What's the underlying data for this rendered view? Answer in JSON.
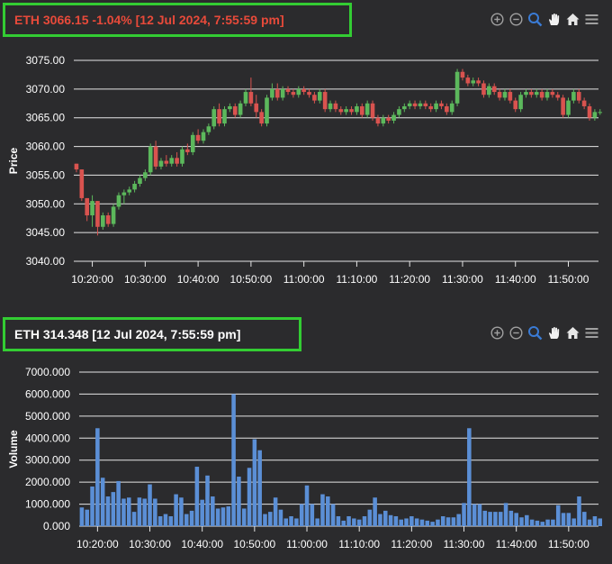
{
  "price_chart": {
    "title": "ETH 3066.15 -1.04% [12 Jul 2024, 7:55:59 pm]",
    "title_color": "#e84a3a",
    "toolbar": [
      "zoom-in-icon",
      "zoom-out-icon",
      "selection-zoom-icon",
      "pan-icon",
      "home-icon",
      "menu-icon"
    ]
  },
  "volume_chart": {
    "title": "ETH 314.348 [12 Jul 2024, 7:55:59 pm]",
    "title_color": "#ffffff",
    "toolbar": [
      "zoom-in-icon",
      "zoom-out-icon",
      "selection-zoom-icon",
      "pan-icon",
      "home-icon",
      "menu-icon"
    ]
  },
  "colors": {
    "up": "#5cb85c",
    "down": "#d9534f",
    "volume_bar": "#5b8fd6",
    "grid": "#e6e6e6",
    "axis_text": "#ffffff",
    "toolbar_icon": "#a0a0a0",
    "toolbar_active": "#3a7bd5",
    "highlight_border": "#33cc33"
  },
  "chart_data": [
    {
      "type": "candlestick",
      "ylabel": "Price",
      "xlabel": "",
      "ylim": [
        3040,
        3075
      ],
      "y_ticks": [
        "3040.00",
        "3045.00",
        "3050.00",
        "3055.00",
        "3060.00",
        "3065.00",
        "3070.00",
        "3075.00"
      ],
      "x_ticks": [
        "10:20:00",
        "10:30:00",
        "10:40:00",
        "10:50:00",
        "11:00:00",
        "11:10:00",
        "11:20:00",
        "11:30:00",
        "11:40:00",
        "11:50:00"
      ],
      "x_tick_minutes": [
        20,
        30,
        40,
        50,
        60,
        70,
        80,
        90,
        100,
        110
      ],
      "x_range_minutes": [
        16.5,
        115.7
      ],
      "ohlc": [
        [
          3057.0,
          3057.0,
          3055.5,
          3056.0
        ],
        [
          3056.0,
          3056.0,
          3050.5,
          3051.0
        ],
        [
          3051.0,
          3051.0,
          3047.0,
          3048.0
        ],
        [
          3048.0,
          3051.5,
          3046.0,
          3050.5
        ],
        [
          3050.5,
          3050.5,
          3044.5,
          3046.0
        ],
        [
          3046.0,
          3048.5,
          3045.5,
          3048.0
        ],
        [
          3048.0,
          3048.5,
          3046.0,
          3046.5
        ],
        [
          3046.5,
          3050.0,
          3046.0,
          3049.5
        ],
        [
          3049.5,
          3052.0,
          3049.0,
          3051.5
        ],
        [
          3051.5,
          3052.5,
          3050.0,
          3052.0
        ],
        [
          3052.0,
          3053.0,
          3051.5,
          3052.5
        ],
        [
          3052.5,
          3054.0,
          3052.0,
          3053.5
        ],
        [
          3053.5,
          3055.0,
          3053.0,
          3054.5
        ],
        [
          3054.5,
          3056.0,
          3054.0,
          3055.5
        ],
        [
          3055.5,
          3060.5,
          3055.0,
          3060.0
        ],
        [
          3060.0,
          3061.0,
          3056.0,
          3056.5
        ],
        [
          3056.5,
          3058.0,
          3056.0,
          3057.5
        ],
        [
          3057.5,
          3058.5,
          3056.5,
          3057.0
        ],
        [
          3057.0,
          3058.5,
          3056.5,
          3058.0
        ],
        [
          3058.0,
          3059.0,
          3056.5,
          3057.0
        ],
        [
          3057.0,
          3060.0,
          3056.5,
          3059.5
        ],
        [
          3059.5,
          3060.5,
          3058.5,
          3059.0
        ],
        [
          3059.0,
          3062.5,
          3058.5,
          3062.0
        ],
        [
          3062.0,
          3063.0,
          3060.5,
          3061.0
        ],
        [
          3061.0,
          3063.0,
          3060.5,
          3062.5
        ],
        [
          3062.5,
          3064.0,
          3062.0,
          3063.5
        ],
        [
          3063.5,
          3067.0,
          3063.0,
          3066.5
        ],
        [
          3066.5,
          3067.5,
          3063.5,
          3064.0
        ],
        [
          3064.0,
          3067.0,
          3063.5,
          3066.5
        ],
        [
          3066.5,
          3067.5,
          3066.0,
          3067.0
        ],
        [
          3067.0,
          3067.5,
          3065.0,
          3065.5
        ],
        [
          3065.5,
          3068.0,
          3065.0,
          3067.5
        ],
        [
          3067.5,
          3070.0,
          3067.0,
          3069.5
        ],
        [
          3069.5,
          3072.0,
          3067.0,
          3067.5
        ],
        [
          3067.5,
          3069.0,
          3065.0,
          3066.0
        ],
        [
          3066.0,
          3066.5,
          3063.5,
          3064.0
        ],
        [
          3064.0,
          3069.0,
          3063.5,
          3068.5
        ],
        [
          3068.5,
          3071.0,
          3068.0,
          3070.0
        ],
        [
          3070.0,
          3071.0,
          3068.0,
          3068.5
        ],
        [
          3068.5,
          3070.5,
          3068.0,
          3070.0
        ],
        [
          3070.0,
          3070.5,
          3069.0,
          3069.5
        ],
        [
          3069.5,
          3070.0,
          3068.5,
          3069.0
        ],
        [
          3069.0,
          3070.5,
          3068.5,
          3070.0
        ],
        [
          3070.0,
          3070.5,
          3069.0,
          3069.5
        ],
        [
          3069.5,
          3070.0,
          3068.5,
          3069.0
        ],
        [
          3069.0,
          3069.5,
          3067.5,
          3068.0
        ],
        [
          3068.0,
          3070.0,
          3067.5,
          3069.5
        ],
        [
          3069.5,
          3070.0,
          3066.0,
          3066.5
        ],
        [
          3066.5,
          3068.0,
          3066.0,
          3067.5
        ],
        [
          3067.5,
          3068.0,
          3066.0,
          3066.5
        ],
        [
          3066.5,
          3067.0,
          3065.5,
          3066.0
        ],
        [
          3066.0,
          3067.0,
          3065.5,
          3066.5
        ],
        [
          3066.5,
          3067.0,
          3065.5,
          3066.0
        ],
        [
          3066.0,
          3067.5,
          3065.5,
          3067.0
        ],
        [
          3067.0,
          3067.5,
          3065.0,
          3065.5
        ],
        [
          3065.5,
          3068.0,
          3065.0,
          3067.5
        ],
        [
          3067.5,
          3068.0,
          3064.5,
          3065.0
        ],
        [
          3065.0,
          3065.5,
          3063.5,
          3064.0
        ],
        [
          3064.0,
          3065.5,
          3063.5,
          3065.0
        ],
        [
          3065.0,
          3065.5,
          3064.0,
          3064.5
        ],
        [
          3064.5,
          3066.0,
          3064.0,
          3065.5
        ],
        [
          3065.5,
          3067.0,
          3065.0,
          3066.5
        ],
        [
          3066.5,
          3067.5,
          3066.0,
          3067.0
        ],
        [
          3067.0,
          3068.0,
          3066.5,
          3067.5
        ],
        [
          3067.5,
          3068.0,
          3066.5,
          3067.0
        ],
        [
          3067.0,
          3068.0,
          3066.5,
          3067.5
        ],
        [
          3067.5,
          3068.0,
          3066.5,
          3067.0
        ],
        [
          3067.0,
          3067.5,
          3066.0,
          3066.5
        ],
        [
          3066.5,
          3068.0,
          3066.0,
          3067.5
        ],
        [
          3067.5,
          3068.0,
          3066.5,
          3067.0
        ],
        [
          3067.0,
          3067.5,
          3065.5,
          3066.0
        ],
        [
          3066.0,
          3068.0,
          3065.5,
          3067.5
        ],
        [
          3067.5,
          3073.5,
          3067.0,
          3073.0
        ],
        [
          3073.0,
          3073.5,
          3071.5,
          3072.0
        ],
        [
          3072.0,
          3072.5,
          3070.5,
          3071.0
        ],
        [
          3071.0,
          3072.0,
          3070.5,
          3071.5
        ],
        [
          3071.5,
          3072.0,
          3070.5,
          3071.0
        ],
        [
          3071.0,
          3071.5,
          3068.5,
          3069.0
        ],
        [
          3069.0,
          3071.0,
          3068.5,
          3070.5
        ],
        [
          3070.5,
          3071.0,
          3069.0,
          3069.5
        ],
        [
          3069.5,
          3070.0,
          3068.0,
          3068.5
        ],
        [
          3068.5,
          3070.0,
          3068.0,
          3069.5
        ],
        [
          3069.5,
          3070.0,
          3067.5,
          3068.0
        ],
        [
          3068.0,
          3068.5,
          3066.0,
          3066.5
        ],
        [
          3066.5,
          3069.5,
          3066.0,
          3069.0
        ],
        [
          3069.0,
          3070.0,
          3068.5,
          3069.5
        ],
        [
          3069.5,
          3070.0,
          3068.5,
          3069.0
        ],
        [
          3069.0,
          3070.0,
          3068.5,
          3069.5
        ],
        [
          3069.5,
          3070.0,
          3068.0,
          3068.5
        ],
        [
          3068.5,
          3070.0,
          3068.0,
          3069.5
        ],
        [
          3069.5,
          3070.0,
          3068.5,
          3069.0
        ],
        [
          3069.0,
          3069.5,
          3068.0,
          3068.5
        ],
        [
          3068.5,
          3069.0,
          3065.0,
          3065.5
        ],
        [
          3065.5,
          3068.5,
          3065.0,
          3068.0
        ],
        [
          3068.0,
          3070.0,
          3067.5,
          3069.5
        ],
        [
          3069.5,
          3070.0,
          3067.5,
          3068.0
        ],
        [
          3068.0,
          3068.5,
          3066.5,
          3067.0
        ],
        [
          3067.0,
          3067.5,
          3064.5,
          3065.0
        ],
        [
          3065.0,
          3066.5,
          3064.5,
          3066.0
        ],
        [
          3066.0,
          3066.5,
          3065.5,
          3066.0
        ]
      ]
    },
    {
      "type": "bar",
      "ylabel": "Volume",
      "xlabel": "",
      "ylim": [
        0,
        7000
      ],
      "y_ticks": [
        "0.000",
        "1000.000",
        "2000.000",
        "3000.000",
        "4000.000",
        "5000.000",
        "6000.000",
        "7000.000"
      ],
      "x_ticks": [
        "10:20:00",
        "10:30:00",
        "10:40:00",
        "10:50:00",
        "11:00:00",
        "11:10:00",
        "11:20:00",
        "11:30:00",
        "11:40:00",
        "11:50:00"
      ],
      "x_tick_minutes": [
        20,
        30,
        40,
        50,
        60,
        70,
        80,
        90,
        100,
        110
      ],
      "x_range_minutes": [
        16.5,
        115.7
      ],
      "values": [
        850,
        750,
        1800,
        4450,
        2200,
        1350,
        1550,
        2050,
        1250,
        1300,
        650,
        1300,
        1250,
        1900,
        1250,
        450,
        550,
        450,
        1450,
        1300,
        550,
        700,
        2700,
        1200,
        2300,
        1350,
        800,
        850,
        900,
        6000,
        2250,
        800,
        2650,
        3950,
        3450,
        550,
        650,
        1300,
        750,
        350,
        450,
        350,
        1000,
        1850,
        1000,
        350,
        1450,
        1350,
        1000,
        450,
        250,
        450,
        350,
        300,
        450,
        750,
        1300,
        550,
        700,
        500,
        450,
        300,
        350,
        450,
        350,
        300,
        250,
        200,
        300,
        450,
        400,
        400,
        550,
        1050,
        4450,
        1000,
        1000,
        700,
        650,
        650,
        650,
        1050,
        700,
        600,
        400,
        500,
        300,
        250,
        200,
        300,
        300,
        950,
        600,
        600,
        350,
        1350,
        650,
        300,
        450,
        350
      ]
    }
  ]
}
